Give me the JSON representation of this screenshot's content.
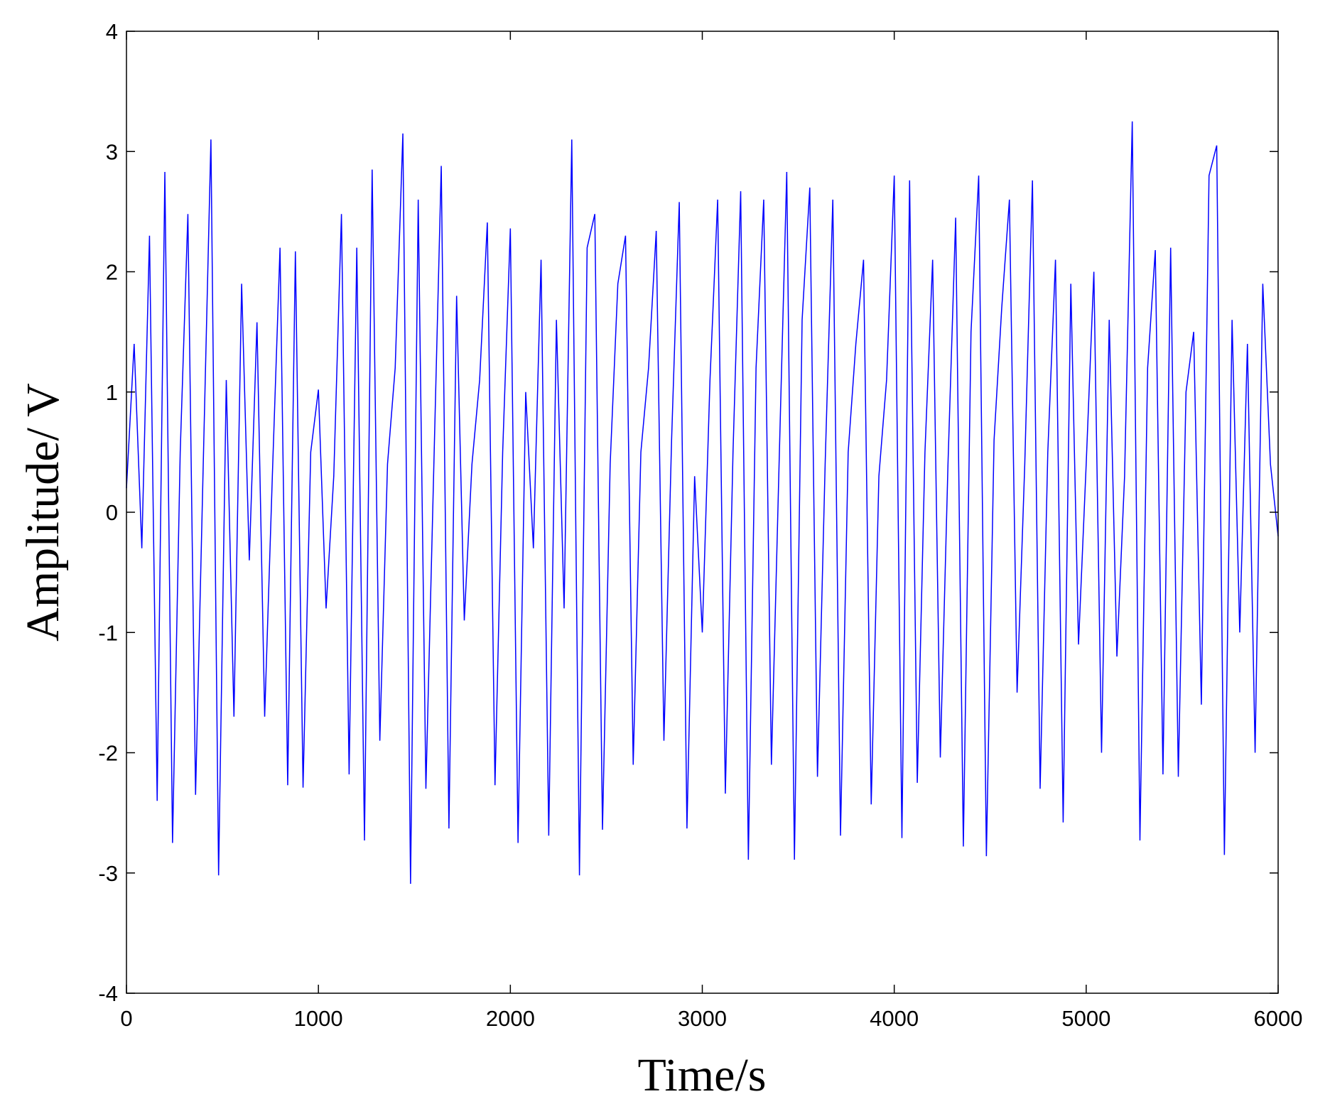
{
  "chart_data": {
    "type": "line",
    "x_label": "Time/s",
    "y_label": "Amplitude/ V",
    "x": [
      0,
      40,
      80,
      120,
      160,
      200,
      240,
      280,
      320,
      360,
      400,
      440,
      480,
      520,
      560,
      600,
      640,
      680,
      720,
      760,
      800,
      840,
      880,
      920,
      960,
      1000,
      1040,
      1080,
      1120,
      1160,
      1200,
      1240,
      1280,
      1320,
      1360,
      1400,
      1440,
      1480,
      1520,
      1560,
      1600,
      1640,
      1680,
      1720,
      1760,
      1800,
      1840,
      1880,
      1920,
      1960,
      2000,
      2040,
      2080,
      2120,
      2160,
      2200,
      2240,
      2280,
      2320,
      2360,
      2400,
      2440,
      2480,
      2520,
      2560,
      2600,
      2640,
      2680,
      2720,
      2760,
      2800,
      2840,
      2880,
      2920,
      2960,
      3000,
      3040,
      3080,
      3120,
      3160,
      3200,
      3240,
      3280,
      3320,
      3360,
      3400,
      3440,
      3480,
      3520,
      3560,
      3600,
      3640,
      3680,
      3720,
      3760,
      3800,
      3840,
      3880,
      3920,
      3960,
      4000,
      4040,
      4080,
      4120,
      4160,
      4200,
      4240,
      4280,
      4320,
      4360,
      4400,
      4440,
      4480,
      4520,
      4560,
      4600,
      4640,
      4680,
      4720,
      4760,
      4800,
      4840,
      4880,
      4920,
      4960,
      5000,
      5040,
      5080,
      5120,
      5160,
      5200,
      5240,
      5280,
      5320,
      5360,
      5400,
      5440,
      5480,
      5520,
      5560,
      5600,
      5640,
      5680,
      5720,
      5760,
      5800,
      5840,
      5880,
      5920,
      5960,
      6000
    ],
    "series": [
      {
        "color": "#0000ff",
        "values": [
          0.2,
          1.4,
          -0.3,
          2.3,
          -2.4,
          2.83,
          -2.75,
          0.5,
          2.48,
          -2.35,
          0.4,
          3.1,
          -3.02,
          1.1,
          -1.7,
          1.9,
          -0.4,
          1.58,
          -1.7,
          0.3,
          2.2,
          -2.27,
          2.17,
          -2.29,
          0.5,
          1.02,
          -0.8,
          0.3,
          2.48,
          -2.18,
          2.2,
          -2.73,
          2.85,
          -1.9,
          0.4,
          1.2,
          3.15,
          -3.09,
          2.6,
          -2.3,
          0.3,
          2.88,
          -2.63,
          1.8,
          -0.9,
          0.4,
          1.1,
          2.41,
          -2.27,
          0.5,
          2.36,
          -2.75,
          1.0,
          -0.3,
          2.1,
          -2.69,
          1.6,
          -0.8,
          3.1,
          -3.02,
          2.2,
          2.48,
          -2.64,
          0.4,
          1.9,
          2.3,
          -2.1,
          0.5,
          1.2,
          2.34,
          -1.9,
          0.6,
          2.58,
          -2.63,
          0.3,
          -1.0,
          1.1,
          2.6,
          -2.34,
          0.5,
          2.67,
          -2.89,
          1.2,
          2.6,
          -2.1,
          0.4,
          2.83,
          -2.89,
          1.6,
          2.7,
          -2.2,
          0.4,
          2.6,
          -2.69,
          0.5,
          1.4,
          2.1,
          -2.43,
          0.3,
          1.1,
          2.8,
          -2.71,
          2.76,
          -2.25,
          0.5,
          2.1,
          -2.04,
          0.4,
          2.45,
          -2.78,
          1.5,
          2.8,
          -2.86,
          0.6,
          1.7,
          2.6,
          -1.5,
          0.4,
          2.76,
          -2.3,
          0.5,
          2.1,
          -2.58,
          1.9,
          -1.1,
          0.4,
          2.0,
          -2.0,
          1.6,
          -1.2,
          0.3,
          3.25,
          -2.73,
          1.2,
          2.18,
          -2.18,
          2.2,
          -2.2,
          1.0,
          1.5,
          -1.6,
          2.8,
          3.05,
          -2.85,
          1.6,
          -1.0,
          1.4,
          -2.0,
          1.9,
          0.4,
          -0.2
        ]
      }
    ],
    "xlim": [
      0,
      6000
    ],
    "xticks": [
      0,
      1000,
      2000,
      3000,
      4000,
      5000,
      6000
    ],
    "ylim": [
      -4,
      4
    ],
    "yticks": [
      -4,
      -3,
      -2,
      -1,
      0,
      1,
      2,
      3,
      4
    ],
    "grid": false
  }
}
